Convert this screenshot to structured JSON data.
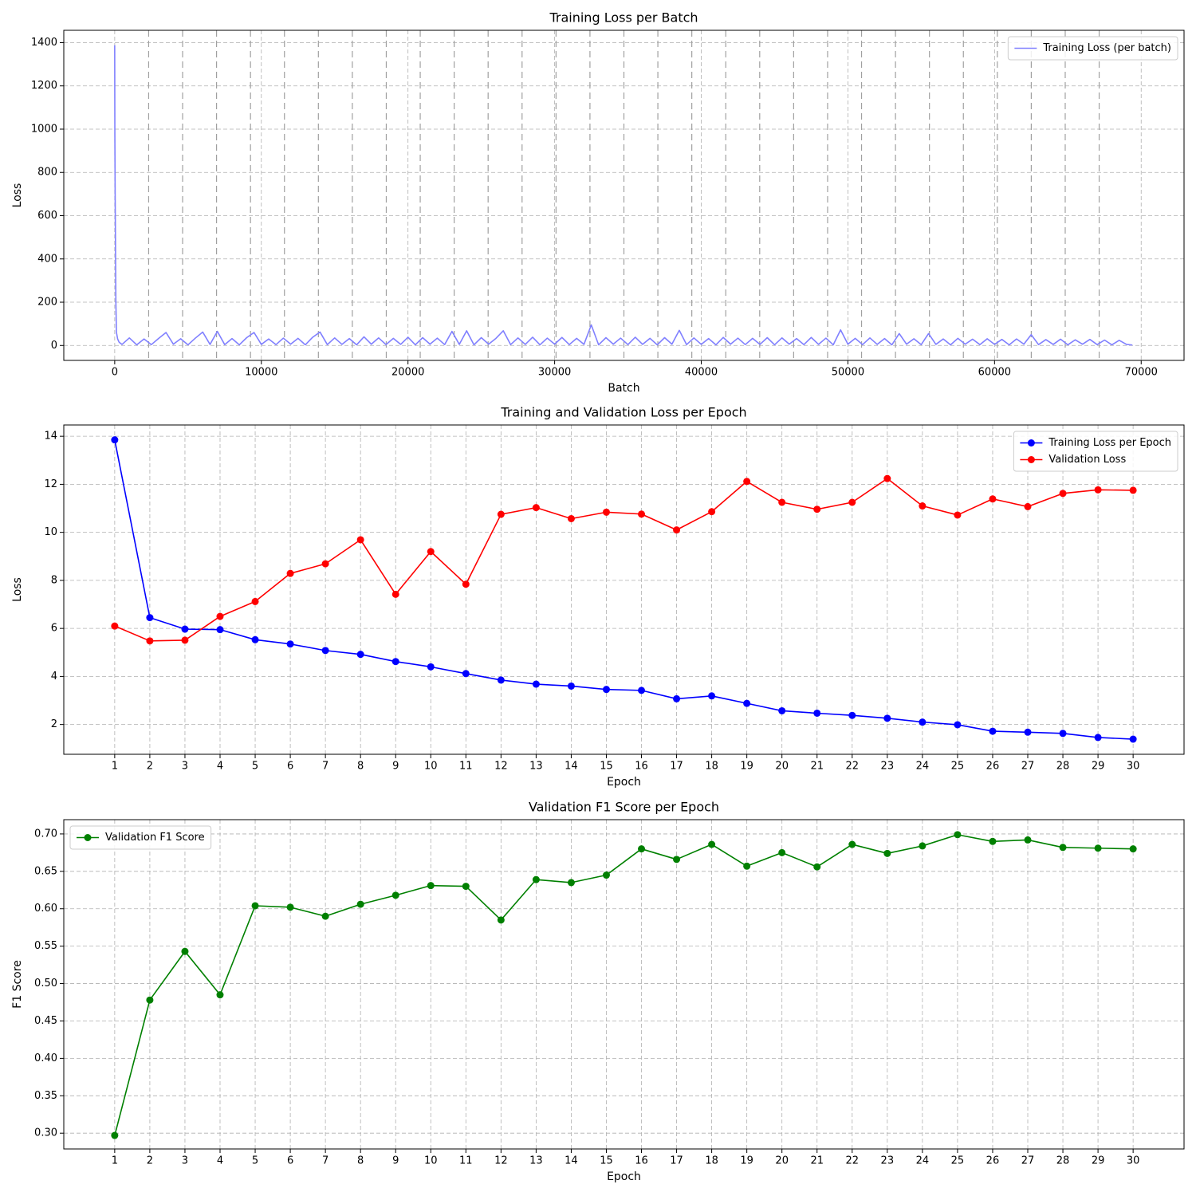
{
  "chart_data": [
    {
      "type": "line",
      "title": "Training Loss per Batch",
      "xlabel": "Batch",
      "ylabel": "Loss",
      "x": [
        0,
        10,
        30,
        50,
        80,
        120,
        200,
        300,
        500,
        1000,
        1500,
        2000,
        2500,
        3000,
        3500,
        4000,
        4500,
        5000,
        5500,
        6000,
        6500,
        7000,
        7500,
        8000,
        8500,
        9000,
        9500,
        10000,
        10500,
        11000,
        11500,
        12000,
        12500,
        13000,
        13500,
        14000,
        14500,
        15000,
        15500,
        16000,
        16500,
        17000,
        17500,
        18000,
        18500,
        19000,
        19500,
        20000,
        20500,
        21000,
        21500,
        22000,
        22500,
        23000,
        23500,
        24000,
        24500,
        25000,
        25500,
        26000,
        26500,
        27000,
        27500,
        28000,
        28500,
        29000,
        29500,
        30000,
        30500,
        31000,
        31500,
        32000,
        32500,
        33000,
        33500,
        34000,
        34500,
        35000,
        35500,
        36000,
        36500,
        37000,
        37500,
        38000,
        38500,
        39000,
        39500,
        40000,
        40500,
        41000,
        41500,
        42000,
        42500,
        43000,
        43500,
        44000,
        44500,
        45000,
        45500,
        46000,
        46500,
        47000,
        47500,
        48000,
        48500,
        49000,
        49500,
        50000,
        50500,
        51000,
        51500,
        52000,
        52500,
        53000,
        53500,
        54000,
        54500,
        55000,
        55500,
        56000,
        56500,
        57000,
        57500,
        58000,
        58500,
        59000,
        59500,
        60000,
        60500,
        61000,
        61500,
        62000,
        62500,
        63000,
        63500,
        64000,
        64500,
        65000,
        65500,
        66000,
        66500,
        67000,
        67500,
        68000,
        68500,
        69000,
        69400
      ],
      "series": [
        {
          "name": "Training Loss (per batch)",
          "color": "#8080ff",
          "values": [
            1388,
            980,
            700,
            500,
            200,
            60,
            30,
            15,
            5,
            35,
            3,
            30,
            4,
            33,
            60,
            6,
            31,
            3,
            34,
            62,
            5,
            65,
            4,
            32,
            3,
            36,
            60,
            5,
            30,
            4,
            34,
            6,
            33,
            3,
            38,
            62,
            4,
            35,
            5,
            32,
            3,
            40,
            6,
            35,
            4,
            33,
            5,
            38,
            3,
            36,
            6,
            34,
            4,
            65,
            5,
            68,
            3,
            36,
            6,
            33,
            68,
            4,
            35,
            5,
            38,
            3,
            34,
            6,
            37,
            4,
            33,
            5,
            95,
            3,
            36,
            6,
            34,
            4,
            38,
            5,
            33,
            3,
            36,
            6,
            70,
            4,
            35,
            5,
            32,
            3,
            37,
            6,
            34,
            4,
            33,
            5,
            36,
            3,
            35,
            6,
            32,
            4,
            37,
            5,
            34,
            3,
            72,
            6,
            33,
            4,
            35,
            5,
            32,
            3,
            55,
            6,
            31,
            4,
            55,
            5,
            30,
            3,
            33,
            6,
            29,
            4,
            31,
            5,
            28,
            3,
            30,
            6,
            50,
            4,
            27,
            5,
            29,
            3,
            26,
            6,
            28,
            4,
            25,
            3,
            24,
            5,
            2
          ]
        }
      ],
      "vlines": [
        2315,
        4630,
        6945,
        9260,
        11575,
        13890,
        16205,
        18520,
        20835,
        23150,
        25465,
        27780,
        30095,
        32410,
        34725,
        37040,
        39355,
        41670,
        43985,
        46300,
        48615,
        50930,
        53245,
        55560,
        57875,
        60190,
        62505,
        64820,
        67135
      ],
      "xlim": [
        -3472.5,
        72922.5
      ],
      "xticks": [
        0,
        10000,
        20000,
        30000,
        40000,
        50000,
        60000,
        70000
      ],
      "ylim": [
        -69,
        1457
      ],
      "yticks": [
        0,
        200,
        400,
        600,
        800,
        1000,
        1200,
        1400
      ],
      "grid": true,
      "legend": "upper right"
    },
    {
      "type": "line",
      "title": "Training and Validation Loss per Epoch",
      "xlabel": "Epoch",
      "ylabel": "Loss",
      "x": [
        1,
        2,
        3,
        4,
        5,
        6,
        7,
        8,
        9,
        10,
        11,
        12,
        13,
        14,
        15,
        16,
        17,
        18,
        19,
        20,
        21,
        22,
        23,
        24,
        25,
        26,
        27,
        28,
        29,
        30
      ],
      "series": [
        {
          "name": "Training Loss per Epoch",
          "color": "#0000ff",
          "marker": "o",
          "values": [
            13.85,
            6.45,
            5.97,
            5.95,
            5.53,
            5.35,
            5.08,
            4.92,
            4.62,
            4.4,
            4.12,
            3.85,
            3.68,
            3.6,
            3.46,
            3.42,
            3.07,
            3.19,
            2.88,
            2.57,
            2.47,
            2.38,
            2.26,
            2.1,
            1.99,
            1.72,
            1.68,
            1.63,
            1.46,
            1.39
          ]
        },
        {
          "name": "Validation Loss",
          "color": "#ff0000",
          "marker": "o",
          "values": [
            6.1,
            5.48,
            5.51,
            6.5,
            7.12,
            8.29,
            8.69,
            9.69,
            7.42,
            9.2,
            7.84,
            10.75,
            11.03,
            10.57,
            10.84,
            10.76,
            10.1,
            10.86,
            12.12,
            11.25,
            10.96,
            11.25,
            12.24,
            11.1,
            10.72,
            11.39,
            11.07,
            11.62,
            11.77,
            11.75
          ]
        }
      ],
      "xlim": [
        -0.45,
        31.45
      ],
      "xticks": [
        1,
        2,
        3,
        4,
        5,
        6,
        7,
        8,
        9,
        10,
        11,
        12,
        13,
        14,
        15,
        16,
        17,
        18,
        19,
        20,
        21,
        22,
        23,
        24,
        25,
        26,
        27,
        28,
        29,
        30
      ],
      "ylim": [
        0.76,
        14.47
      ],
      "yticks": [
        2,
        4,
        6,
        8,
        10,
        12,
        14
      ],
      "grid": true,
      "legend": "upper right"
    },
    {
      "type": "line",
      "title": "Validation F1 Score per Epoch",
      "xlabel": "Epoch",
      "ylabel": "F1 Score",
      "x": [
        1,
        2,
        3,
        4,
        5,
        6,
        7,
        8,
        9,
        10,
        11,
        12,
        13,
        14,
        15,
        16,
        17,
        18,
        19,
        20,
        21,
        22,
        23,
        24,
        25,
        26,
        27,
        28,
        29,
        30
      ],
      "series": [
        {
          "name": "Validation F1 Score",
          "color": "#008000",
          "marker": "o",
          "values": [
            0.297,
            0.478,
            0.543,
            0.485,
            0.604,
            0.602,
            0.59,
            0.606,
            0.618,
            0.631,
            0.63,
            0.585,
            0.639,
            0.635,
            0.645,
            0.68,
            0.666,
            0.686,
            0.657,
            0.675,
            0.656,
            0.686,
            0.674,
            0.684,
            0.699,
            0.69,
            0.692,
            0.682,
            0.681,
            0.68
          ]
        }
      ],
      "xlim": [
        -0.45,
        31.45
      ],
      "xticks": [
        1,
        2,
        3,
        4,
        5,
        6,
        7,
        8,
        9,
        10,
        11,
        12,
        13,
        14,
        15,
        16,
        17,
        18,
        19,
        20,
        21,
        22,
        23,
        24,
        25,
        26,
        27,
        28,
        29,
        30
      ],
      "ylim": [
        0.2789,
        0.7191
      ],
      "yticks": [
        {
          "value": 0.3,
          "label": "0.30"
        },
        0.35,
        {
          "value": 0.4,
          "label": "0.40"
        },
        0.45,
        {
          "value": 0.5,
          "label": "0.50"
        },
        0.55,
        {
          "value": 0.6,
          "label": "0.60"
        },
        0.65,
        {
          "value": 0.7,
          "label": "0.70"
        }
      ],
      "grid": true,
      "legend": "upper left"
    }
  ]
}
